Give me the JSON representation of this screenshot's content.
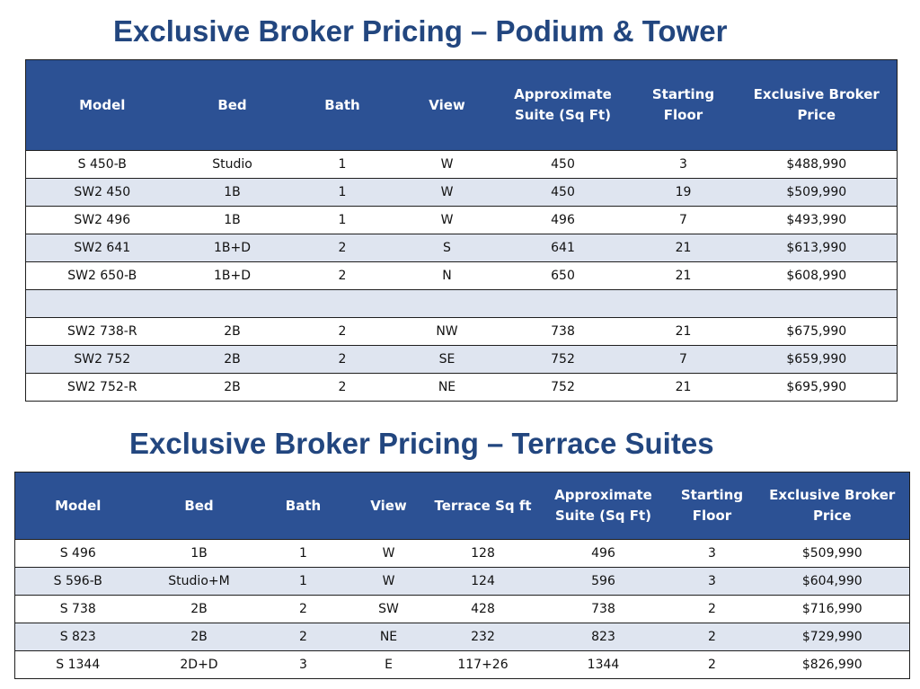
{
  "podium": {
    "title": "Exclusive Broker Pricing – Podium & Tower",
    "headers": [
      "Model",
      "Bed",
      "Bath",
      "View",
      "Approximate Suite (Sq Ft)",
      "Starting Floor",
      "Exclusive Broker Price"
    ],
    "rows": [
      [
        "S 450-B",
        "Studio",
        "1",
        "W",
        "450",
        "3",
        "$488,990"
      ],
      [
        "SW2 450",
        "1B",
        "1",
        "W",
        "450",
        "19",
        "$509,990"
      ],
      [
        "SW2 496",
        "1B",
        "1",
        "W",
        "496",
        "7",
        "$493,990"
      ],
      [
        "SW2 641",
        "1B+D",
        "2",
        "S",
        "641",
        "21",
        "$613,990"
      ],
      [
        "SW2 650-B",
        "1B+D",
        "2",
        "N",
        "650",
        "21",
        "$608,990"
      ],
      [
        "",
        "",
        "",
        "",
        "",
        "",
        ""
      ],
      [
        "SW2 738-R",
        "2B",
        "2",
        "NW",
        "738",
        "21",
        "$675,990"
      ],
      [
        "SW2 752",
        "2B",
        "2",
        "SE",
        "752",
        "7",
        "$659,990"
      ],
      [
        "SW2 752-R",
        "2B",
        "2",
        "NE",
        "752",
        "21",
        "$695,990"
      ]
    ]
  },
  "terrace": {
    "title": "Exclusive Broker Pricing – Terrace Suites",
    "headers": [
      "Model",
      "Bed",
      "Bath",
      "View",
      "Terrace Sq ft",
      "Approximate Suite (Sq Ft)",
      "Starting Floor",
      "Exclusive Broker Price"
    ],
    "rows": [
      [
        "S 496",
        "1B",
        "1",
        "W",
        "128",
        "496",
        "3",
        "$509,990"
      ],
      [
        "S 596-B",
        "Studio+M",
        "1",
        "W",
        "124",
        "596",
        "3",
        "$604,990"
      ],
      [
        "S 738",
        "2B",
        "2",
        "SW",
        "428",
        "738",
        "2",
        "$716,990"
      ],
      [
        "S 823",
        "2B",
        "2",
        "NE",
        "232",
        "823",
        "2",
        "$729,990"
      ],
      [
        "S 1344",
        "2D+D",
        "3",
        "E",
        "117+26",
        "1344",
        "2",
        "$826,990"
      ]
    ]
  },
  "colors": {
    "title": "#22467f",
    "header_bg": "#2c5194",
    "band_bg": "#dfe5f0"
  }
}
